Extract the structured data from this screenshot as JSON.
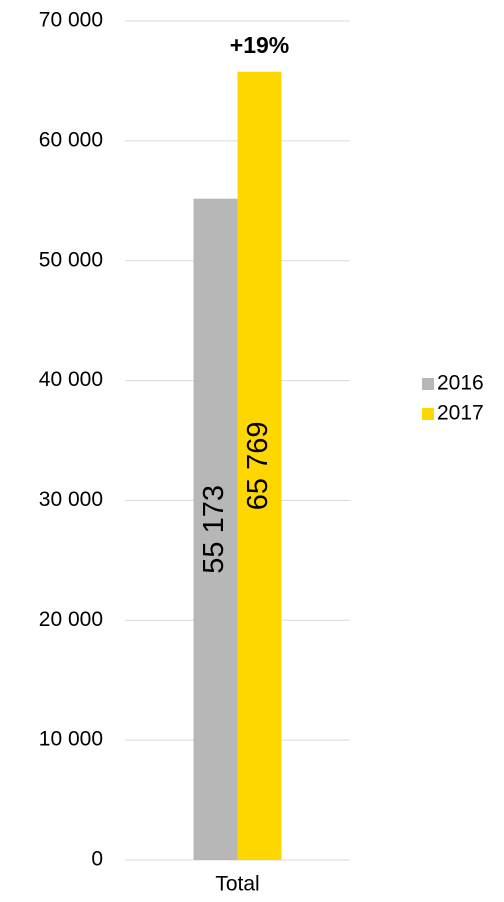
{
  "chart_data": {
    "type": "bar",
    "categories": [
      "Total"
    ],
    "series": [
      {
        "name": "2016",
        "color": "#b7b7b7",
        "values": [
          55173
        ],
        "value_labels": [
          "55 173"
        ]
      },
      {
        "name": "2017",
        "color": "#ffd700",
        "values": [
          65769
        ],
        "value_labels": [
          "65 769"
        ]
      }
    ],
    "annotations": [
      "+19%"
    ],
    "ylim": [
      0,
      70000
    ],
    "yticks": [
      {
        "value": 0,
        "label": "0"
      },
      {
        "value": 10000,
        "label": "10 000"
      },
      {
        "value": 20000,
        "label": "20 000"
      },
      {
        "value": 30000,
        "label": "30 000"
      },
      {
        "value": 40000,
        "label": "40 000"
      },
      {
        "value": 50000,
        "label": "50 000"
      },
      {
        "value": 60000,
        "label": "60 000"
      },
      {
        "value": 70000,
        "label": "70 000"
      }
    ],
    "grid": true,
    "legend": "right"
  }
}
